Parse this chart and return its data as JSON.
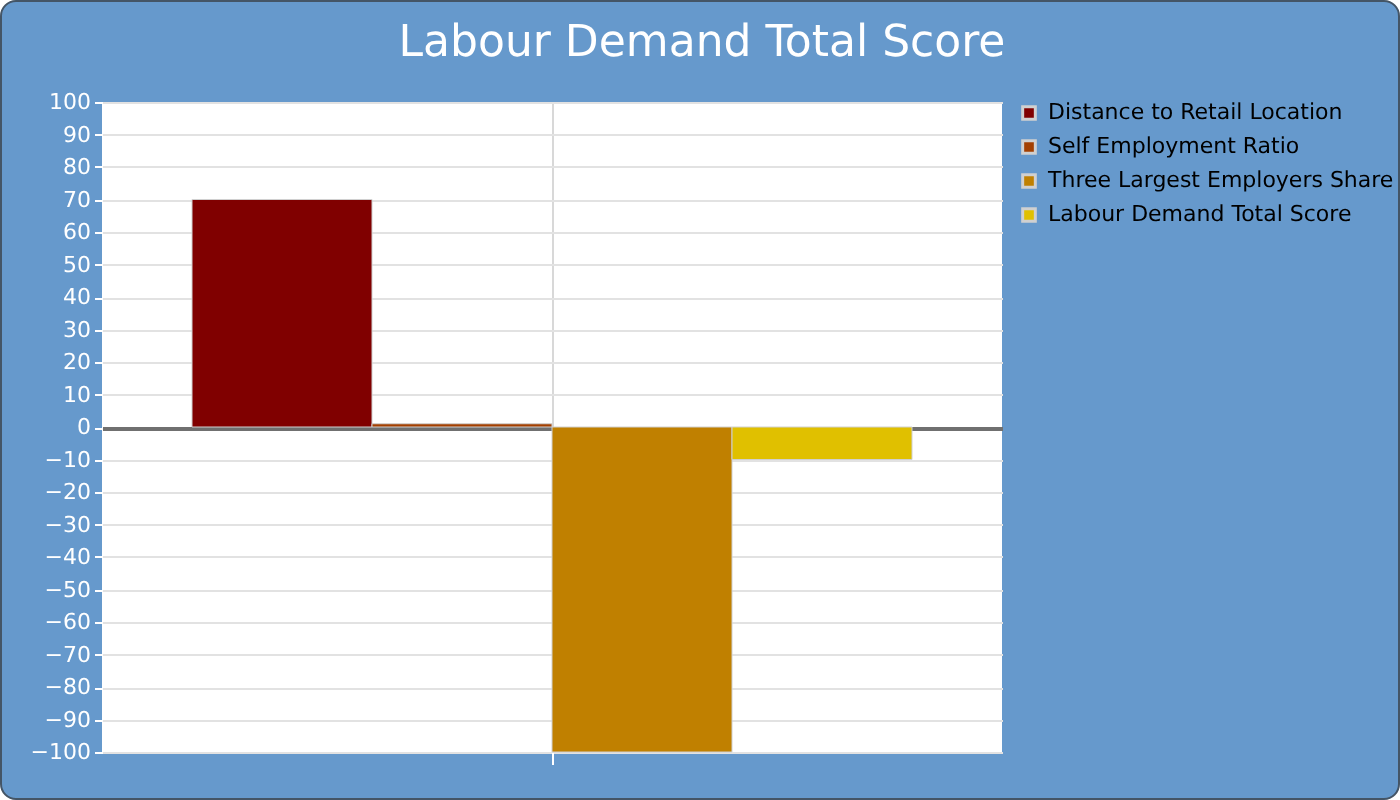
{
  "chart_data": {
    "type": "bar",
    "title": "Labour Demand Total Score",
    "categories": [
      null
    ],
    "series": [
      {
        "name": "Distance to Retail Location",
        "color": "#800000",
        "values": [
          70
        ]
      },
      {
        "name": "Self Employment Ratio",
        "color": "#a33f00",
        "values": [
          1
        ]
      },
      {
        "name": "Three Largest Employers Share",
        "color": "#c08000",
        "values": [
          -100
        ]
      },
      {
        "name": "Labour Demand Total Score",
        "color": "#e0c000",
        "values": [
          -10
        ]
      }
    ],
    "ylim": [
      -100,
      100
    ],
    "yticks": [
      -100,
      -90,
      -80,
      -70,
      -60,
      -50,
      -40,
      -30,
      -20,
      -10,
      0,
      10,
      20,
      30,
      40,
      50,
      60,
      70,
      80,
      90,
      100
    ],
    "grid": true,
    "legend": "right"
  }
}
